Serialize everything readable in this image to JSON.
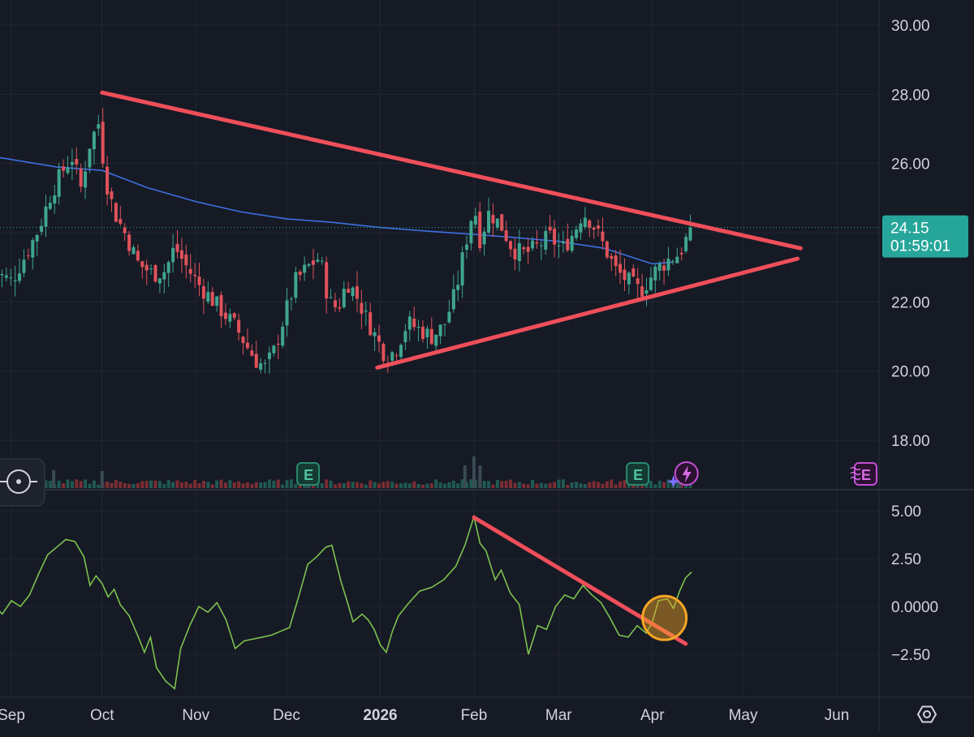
{
  "colors": {
    "background": "#161a25",
    "grid": "#232733",
    "up": "#3fa58e",
    "down": "#e0525a",
    "ma": "#3d6fe0",
    "oscillator": "#7cc24f",
    "trendline": "#ef4f5a",
    "highlight": "#f5a623",
    "badge": "#26a69a",
    "earnings": "#2a8a6e",
    "upcoming_earnings": "#c54fd6",
    "text": "#d1d4dc"
  },
  "price_label": {
    "price": "24.15",
    "countdown": "01:59:01"
  },
  "badges": {
    "earnings_label": "E",
    "earnings_icon": "earnings-e-icon",
    "flash_icon": "lightning-icon",
    "upcoming_icon": "upcoming-earnings-icon",
    "target_icon": "crosshair-icon",
    "settings_icon": "settings-hexagon-icon"
  },
  "chart_data": [
    {
      "type": "candlestick",
      "title": "",
      "y_ticks": [
        "30.00",
        "28.00",
        "26.00",
        "24.00",
        "22.00",
        "20.00",
        "18.00"
      ],
      "ylim": [
        17.4,
        30.7
      ],
      "x_ticks": [
        "Sep",
        "Oct",
        "Nov",
        "Dec",
        "2026",
        "Feb",
        "Mar",
        "Apr",
        "May",
        "Jun"
      ],
      "x_tick_dates": [
        "2025-09-01",
        "2025-10-01",
        "2025-11-01",
        "2025-12-01",
        "2026-01-01",
        "2026-02-01",
        "2026-03-01",
        "2026-04-01",
        "2026-05-01",
        "2026-06-01"
      ],
      "xlim": [
        "2025-08-26",
        "2026-06-13"
      ],
      "grid": true,
      "last_price": 24.15,
      "close_path": [
        [
          "2025-08-26",
          22.9
        ],
        [
          "2025-09-01",
          22.6
        ],
        [
          "2025-09-06",
          23.4
        ],
        [
          "2025-09-10",
          24.1
        ],
        [
          "2025-09-14",
          25.1
        ],
        [
          "2025-09-18",
          25.8
        ],
        [
          "2025-09-21",
          26.2
        ],
        [
          "2025-09-24",
          25.3
        ],
        [
          "2025-09-27",
          26.6
        ],
        [
          "2025-09-30",
          27.2
        ],
        [
          "2025-10-02",
          25.6
        ],
        [
          "2025-10-05",
          24.6
        ],
        [
          "2025-10-09",
          23.9
        ],
        [
          "2025-10-13",
          23.1
        ],
        [
          "2025-10-18",
          22.8
        ],
        [
          "2025-10-22",
          22.9
        ],
        [
          "2025-10-25",
          23.6
        ],
        [
          "2025-10-29",
          23.0
        ],
        [
          "2025-11-02",
          22.5
        ],
        [
          "2025-11-06",
          22.1
        ],
        [
          "2025-11-10",
          21.7
        ],
        [
          "2025-11-14",
          21.3
        ],
        [
          "2025-11-18",
          20.7
        ],
        [
          "2025-11-21",
          20.3
        ],
        [
          "2025-11-24",
          20.1
        ],
        [
          "2025-11-27",
          20.6
        ],
        [
          "2025-11-30",
          21.5
        ],
        [
          "2025-12-04",
          22.6
        ],
        [
          "2025-12-08",
          23.0
        ],
        [
          "2025-12-12",
          23.3
        ],
        [
          "2025-12-15",
          22.0
        ],
        [
          "2025-12-18",
          21.8
        ],
        [
          "2025-12-21",
          22.6
        ],
        [
          "2025-12-24",
          22.2
        ],
        [
          "2025-12-27",
          21.6
        ],
        [
          "2025-12-31",
          20.9
        ],
        [
          "2026-01-03",
          20.4
        ],
        [
          "2026-01-06",
          20.6
        ],
        [
          "2026-01-10",
          21.4
        ],
        [
          "2026-01-14",
          21.2
        ],
        [
          "2026-01-18",
          21.0
        ],
        [
          "2026-01-22",
          21.3
        ],
        [
          "2026-01-26",
          22.3
        ],
        [
          "2026-01-29",
          23.6
        ],
        [
          "2026-02-01",
          24.8
        ],
        [
          "2026-02-03",
          23.8
        ],
        [
          "2026-02-06",
          24.6
        ],
        [
          "2026-02-10",
          24.2
        ],
        [
          "2026-02-14",
          23.5
        ],
        [
          "2026-02-18",
          23.4
        ],
        [
          "2026-02-22",
          23.6
        ],
        [
          "2026-02-26",
          23.9
        ],
        [
          "2026-03-02",
          23.5
        ],
        [
          "2026-03-06",
          24.0
        ],
        [
          "2026-03-09",
          24.6
        ],
        [
          "2026-03-12",
          24.3
        ],
        [
          "2026-03-16",
          23.6
        ],
        [
          "2026-03-20",
          22.9
        ],
        [
          "2026-03-24",
          22.6
        ],
        [
          "2026-03-28",
          22.3
        ],
        [
          "2026-04-02",
          22.9
        ],
        [
          "2026-04-06",
          23.2
        ],
        [
          "2026-04-10",
          23.4
        ],
        [
          "2026-04-14",
          24.15
        ]
      ],
      "series": [
        {
          "name": "",
          "type": "line",
          "values": [
            [
              "2025-08-26",
              26.2
            ],
            [
              "2025-09-16",
              25.9
            ],
            [
              "2025-10-01",
              25.8
            ],
            [
              "2025-10-16",
              25.3
            ],
            [
              "2025-11-01",
              24.9
            ],
            [
              "2025-11-16",
              24.6
            ],
            [
              "2025-12-01",
              24.4
            ],
            [
              "2025-12-16",
              24.3
            ],
            [
              "2026-01-01",
              24.15
            ],
            [
              "2026-01-16",
              24.05
            ],
            [
              "2026-02-01",
              23.95
            ],
            [
              "2026-02-16",
              23.85
            ],
            [
              "2026-03-01",
              23.75
            ],
            [
              "2026-03-16",
              23.55
            ],
            [
              "2026-04-01",
              23.1
            ],
            [
              "2026-04-08",
              23.15
            ]
          ]
        }
      ],
      "trendlines": [
        {
          "from": [
            "2025-10-01",
            28.05
          ],
          "to": [
            "2026-05-20",
            23.55
          ]
        },
        {
          "from": [
            "2025-12-31",
            20.1
          ],
          "to": [
            "2026-05-19",
            23.25
          ]
        }
      ]
    },
    {
      "type": "bar",
      "title": "",
      "xlim": [
        "2025-08-26",
        "2026-06-13"
      ],
      "earnings_dates": [
        "2025-12-08",
        "2026-03-27"
      ],
      "upcoming_earnings_date": "2026-05-27",
      "flash_date": "2026-04-12",
      "volume_spikes": [
        [
          "2025-09-15",
          1.6
        ],
        [
          "2025-10-01",
          1.5
        ],
        [
          "2025-12-08",
          1.7
        ],
        [
          "2026-01-29",
          2.0
        ],
        [
          "2026-02-01",
          2.8
        ],
        [
          "2026-02-03",
          2.0
        ],
        [
          "2026-03-27",
          1.8
        ],
        [
          "2026-04-10",
          1.9
        ]
      ]
    },
    {
      "type": "line",
      "title": "",
      "y_ticks": [
        "5.00",
        "2.50",
        "0.0000",
        "−2.50"
      ],
      "ylim": [
        -4.5,
        5.4
      ],
      "xlim": [
        "2025-08-26",
        "2026-06-13"
      ],
      "grid": true,
      "series": [
        {
          "name": "",
          "values": [
            [
              "2025-08-26",
              0.1
            ],
            [
              "2025-08-29",
              -0.4
            ],
            [
              "2025-09-01",
              0.3
            ],
            [
              "2025-09-04",
              0.0
            ],
            [
              "2025-09-07",
              0.6
            ],
            [
              "2025-09-10",
              1.7
            ],
            [
              "2025-09-13",
              2.7
            ],
            [
              "2025-09-16",
              3.1
            ],
            [
              "2025-09-19",
              3.5
            ],
            [
              "2025-09-22",
              3.4
            ],
            [
              "2025-09-25",
              2.6
            ],
            [
              "2025-09-27",
              1.1
            ],
            [
              "2025-09-29",
              1.6
            ],
            [
              "2025-10-01",
              1.2
            ],
            [
              "2025-10-03",
              0.5
            ],
            [
              "2025-10-05",
              0.9
            ],
            [
              "2025-10-07",
              0.1
            ],
            [
              "2025-10-10",
              -0.5
            ],
            [
              "2025-10-13",
              -1.6
            ],
            [
              "2025-10-15",
              -2.4
            ],
            [
              "2025-10-17",
              -1.6
            ],
            [
              "2025-10-19",
              -3.2
            ],
            [
              "2025-10-22",
              -3.9
            ],
            [
              "2025-10-25",
              -4.3
            ],
            [
              "2025-10-27",
              -2.2
            ],
            [
              "2025-10-30",
              -1.0
            ],
            [
              "2025-11-02",
              0.0
            ],
            [
              "2025-11-05",
              -0.3
            ],
            [
              "2025-11-08",
              0.2
            ],
            [
              "2025-11-11",
              -0.7
            ],
            [
              "2025-11-14",
              -2.2
            ],
            [
              "2025-11-17",
              -1.8
            ],
            [
              "2025-11-20",
              -1.7
            ],
            [
              "2025-11-23",
              -1.6
            ],
            [
              "2025-11-26",
              -1.5
            ],
            [
              "2025-11-29",
              -1.3
            ],
            [
              "2025-12-02",
              -1.1
            ],
            [
              "2025-12-05",
              0.5
            ],
            [
              "2025-12-08",
              2.2
            ],
            [
              "2025-12-11",
              2.6
            ],
            [
              "2025-12-14",
              3.1
            ],
            [
              "2025-12-16",
              3.2
            ],
            [
              "2025-12-19",
              1.3
            ],
            [
              "2025-12-21",
              0.3
            ],
            [
              "2025-12-23",
              -0.8
            ],
            [
              "2025-12-26",
              -0.4
            ],
            [
              "2025-12-28",
              -0.7
            ],
            [
              "2025-12-30",
              -1.2
            ],
            [
              "2026-01-01",
              -2.0
            ],
            [
              "2026-01-03",
              -2.4
            ],
            [
              "2026-01-05",
              -1.3
            ],
            [
              "2026-01-07",
              -0.5
            ],
            [
              "2026-01-10",
              0.1
            ],
            [
              "2026-01-14",
              0.8
            ],
            [
              "2026-01-18",
              1.0
            ],
            [
              "2026-01-22",
              1.4
            ],
            [
              "2026-01-26",
              2.1
            ],
            [
              "2026-01-29",
              3.2
            ],
            [
              "2026-02-01",
              4.7
            ],
            [
              "2026-02-03",
              3.3
            ],
            [
              "2026-02-05",
              2.9
            ],
            [
              "2026-02-08",
              1.4
            ],
            [
              "2026-02-10",
              1.9
            ],
            [
              "2026-02-13",
              0.7
            ],
            [
              "2026-02-16",
              0.1
            ],
            [
              "2026-02-19",
              -2.5
            ],
            [
              "2026-02-22",
              -1.0
            ],
            [
              "2026-02-25",
              -1.2
            ],
            [
              "2026-02-28",
              0.0
            ],
            [
              "2026-03-03",
              0.6
            ],
            [
              "2026-03-06",
              0.4
            ],
            [
              "2026-03-09",
              1.1
            ],
            [
              "2026-03-12",
              0.6
            ],
            [
              "2026-03-15",
              0.2
            ],
            [
              "2026-03-18",
              -0.6
            ],
            [
              "2026-03-21",
              -1.5
            ],
            [
              "2026-03-24",
              -1.6
            ],
            [
              "2026-03-27",
              -1.0
            ],
            [
              "2026-03-30",
              -1.4
            ],
            [
              "2026-04-01",
              -0.8
            ],
            [
              "2026-04-03",
              0.3
            ],
            [
              "2026-04-06",
              0.4
            ],
            [
              "2026-04-08",
              -0.1
            ],
            [
              "2026-04-10",
              0.8
            ],
            [
              "2026-04-12",
              1.5
            ],
            [
              "2026-04-14",
              1.8
            ]
          ]
        }
      ],
      "trendlines": [
        {
          "from": [
            "2026-02-01",
            4.65
          ],
          "to": [
            "2026-04-12",
            -1.95
          ]
        }
      ],
      "highlight": {
        "center": [
          "2026-04-05",
          -0.6
        ]
      }
    }
  ]
}
